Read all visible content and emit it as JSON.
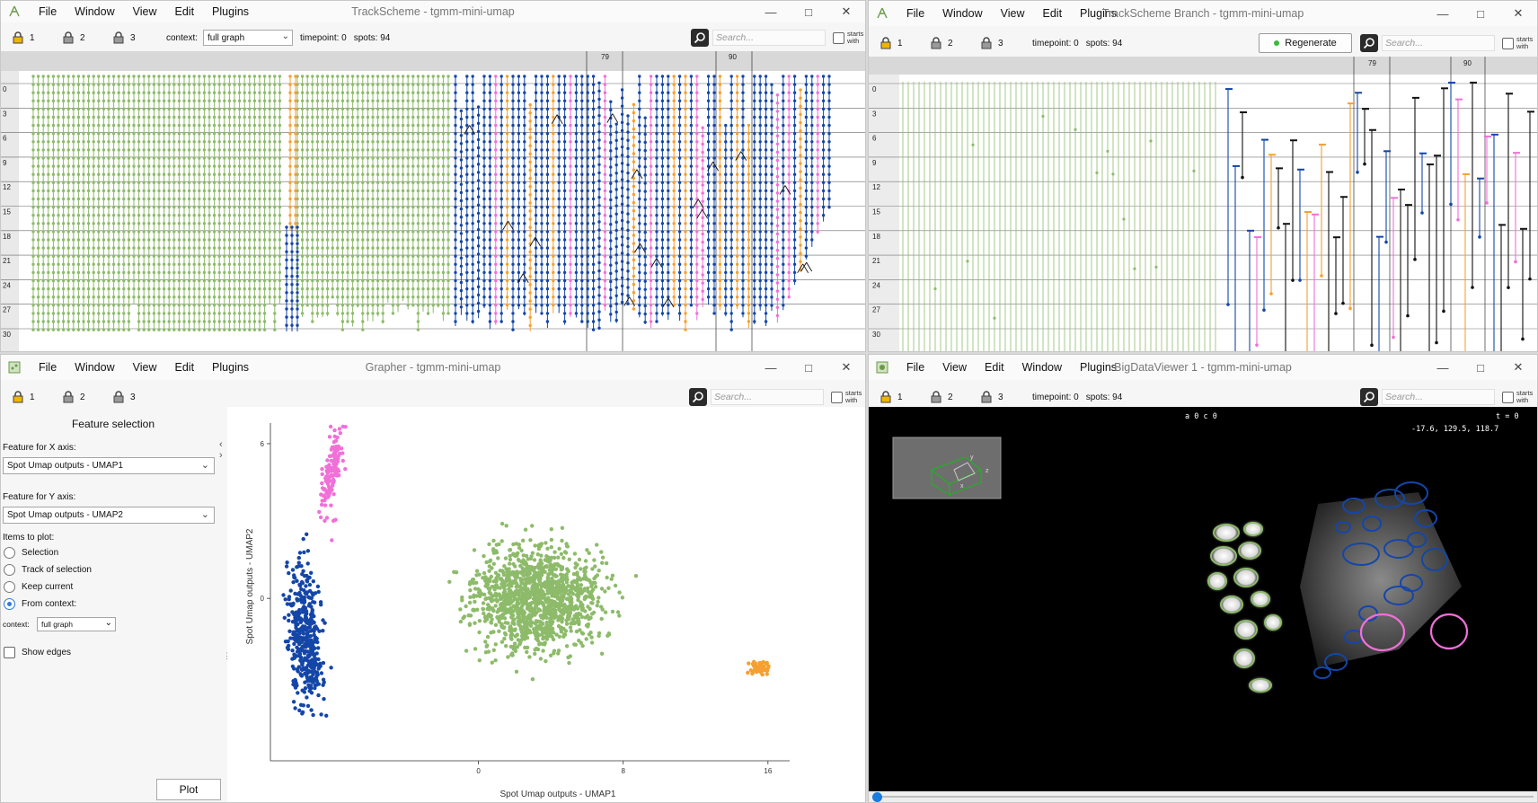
{
  "trackscheme": {
    "title": "TrackScheme - tgmm-mini-umap",
    "menu": [
      "File",
      "Window",
      "View",
      "Edit",
      "Plugins"
    ],
    "locks": [
      "1",
      "2",
      "3"
    ],
    "context_label": "context:",
    "context_value": "full graph",
    "timepoint": "timepoint: 0",
    "spots": "spots: 94",
    "search_placeholder": "Search...",
    "starts_with": "starts with",
    "header_marks": [
      "79",
      "90"
    ],
    "row_labels": [
      "0",
      "3",
      "6",
      "9",
      "12",
      "15",
      "18",
      "21",
      "24",
      "27",
      "30"
    ]
  },
  "trackscheme_branch": {
    "title": "TrackScheme Branch - tgmm-mini-umap",
    "menu": [
      "File",
      "Window",
      "View",
      "Edit",
      "Plugins"
    ],
    "locks": [
      "1",
      "2",
      "3"
    ],
    "timepoint": "timepoint: 0",
    "spots": "spots: 94",
    "regenerate_label": "Regenerate",
    "search_placeholder": "Search...",
    "starts_with": "starts with",
    "header_marks": [
      "79",
      "90"
    ],
    "row_labels": [
      "0",
      "3",
      "6",
      "9",
      "12",
      "15",
      "18",
      "21",
      "24",
      "27",
      "30"
    ]
  },
  "grapher": {
    "title": "Grapher - tgmm-mini-umap",
    "menu": [
      "File",
      "Window",
      "View",
      "Edit",
      "Plugins"
    ],
    "locks": [
      "1",
      "2",
      "3"
    ],
    "search_placeholder": "Search...",
    "starts_with": "starts with",
    "panel_title": "Feature selection",
    "x_axis_label": "Feature for X axis:",
    "x_axis_value": "Spot Umap outputs - UMAP1",
    "y_axis_label": "Feature for Y axis:",
    "y_axis_value": "Spot Umap outputs - UMAP2",
    "items_label": "Items to plot:",
    "items": [
      "Selection",
      "Track of selection",
      "Keep current",
      "From context:"
    ],
    "selected_item": "From context:",
    "context_label": "context:",
    "context_value": "full graph",
    "show_edges": "Show edges",
    "plot_button": "Plot"
  },
  "bdv": {
    "title": "BigDataViewer 1 - tgmm-mini-umap",
    "menu": [
      "File",
      "View",
      "Edit",
      "Window",
      "Plugins"
    ],
    "locks": [
      "1",
      "2",
      "3"
    ],
    "timepoint": "timepoint: 0",
    "spots": "spots: 94",
    "search_placeholder": "Search...",
    "starts_with": "starts with",
    "source_label": "a 0 c 0",
    "time_label": "t = 0",
    "coords": "-17.6,  129.5,   118.7",
    "axis_x": "x",
    "axis_y": "y",
    "axis_z": "z"
  },
  "colors": {
    "green": "#8dbb6a",
    "blue": "#1446a8",
    "pink": "#f070d8",
    "orange": "#f5a030",
    "black": "#111111"
  },
  "chart_data": {
    "type": "scatter",
    "title": "",
    "xlabel": "Spot Umap outputs - UMAP1",
    "ylabel": "Spot Umap outputs - UMAP2",
    "xticks": [
      0,
      8,
      16
    ],
    "yticks": [
      0,
      6
    ],
    "xlim": [
      -11.5,
      17.2
    ],
    "ylim": [
      -6.3,
      6.8
    ],
    "series": [
      {
        "color": "#f070d8",
        "cx": -8.1,
        "cy": 4.9,
        "sx": 0.45,
        "sy": 1.6,
        "n": 140
      },
      {
        "color": "#1446a8",
        "cx": -9.6,
        "cy": -1.5,
        "sx": 0.9,
        "sy": 2.6,
        "n": 420
      },
      {
        "color": "#8dbb6a",
        "cx": 3.3,
        "cy": 0.0,
        "sx": 3.4,
        "sy": 1.9,
        "n": 1300
      },
      {
        "color": "#f5a030",
        "cx": 15.5,
        "cy": -2.7,
        "sx": 0.5,
        "sy": 0.25,
        "n": 60
      }
    ]
  }
}
